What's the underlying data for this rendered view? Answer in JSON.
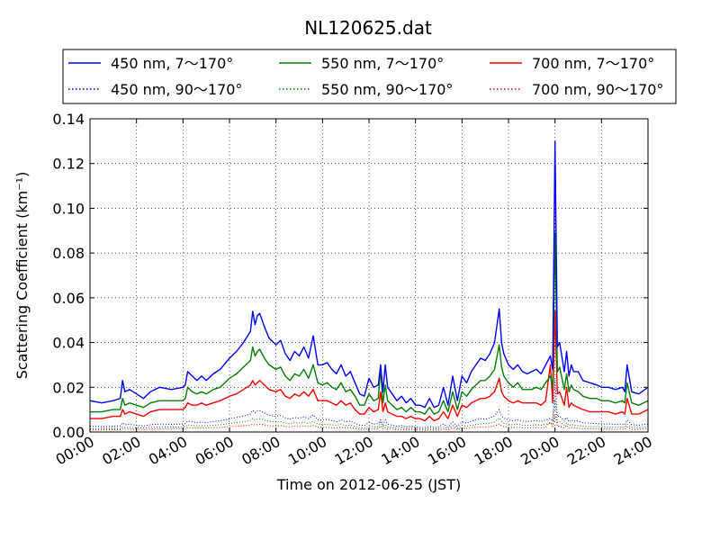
{
  "chart_data": {
    "type": "line",
    "title": "NL120625.dat",
    "xlabel": "Time on 2012-06-25 (JST)",
    "ylabel": "Scattering Coefficient (km⁻¹)",
    "xlim": [
      0,
      24
    ],
    "ylim": [
      0,
      0.14
    ],
    "x_tick_labels": [
      "00:00",
      "02:00",
      "04:00",
      "06:00",
      "08:00",
      "10:00",
      "12:00",
      "14:00",
      "16:00",
      "18:00",
      "20:00",
      "22:00",
      "24:00"
    ],
    "y_ticks": [
      0.0,
      0.02,
      0.04,
      0.06,
      0.08,
      0.1,
      0.12,
      0.14
    ],
    "y_tick_labels": [
      "0.00",
      "0.02",
      "0.04",
      "0.06",
      "0.08",
      "0.10",
      "0.12",
      "0.14"
    ],
    "grid": true,
    "legend_position": "top",
    "series": [
      {
        "name": "450 nm, 7～170°",
        "color": "#0000ff",
        "style": "solid",
        "x": [
          0,
          0.5,
          1,
          1.3,
          1.4,
          1.5,
          1.7,
          2,
          2.3,
          2.6,
          3,
          3.5,
          4,
          4.1,
          4.2,
          4.4,
          4.6,
          4.8,
          5,
          5.3,
          5.6,
          6,
          6.3,
          6.6,
          6.9,
          7.0,
          7.1,
          7.2,
          7.3,
          7.4,
          7.5,
          7.7,
          8,
          8.2,
          8.4,
          8.6,
          8.8,
          9,
          9.2,
          9.4,
          9.6,
          9.8,
          10,
          10.2,
          10.4,
          10.6,
          10.8,
          11,
          11.2,
          11.4,
          11.6,
          11.8,
          12,
          12.2,
          12.4,
          12.5,
          12.6,
          12.7,
          12.8,
          13,
          13.2,
          13.4,
          13.6,
          13.8,
          14,
          14.2,
          14.4,
          14.6,
          14.8,
          15,
          15.2,
          15.4,
          15.6,
          15.8,
          16,
          16.2,
          16.4,
          16.6,
          16.8,
          17,
          17.2,
          17.4,
          17.6,
          17.7,
          17.8,
          18,
          18.2,
          18.4,
          18.6,
          18.8,
          19,
          19.2,
          19.4,
          19.6,
          19.8,
          19.9,
          20.0,
          20.1,
          20.2,
          20.4,
          20.5,
          20.6,
          20.7,
          20.8,
          21,
          21.2,
          21.5,
          21.8,
          22,
          22.3,
          22.6,
          22.9,
          23.0,
          23.1,
          23.3,
          23.6,
          24
        ],
        "y": [
          0.014,
          0.013,
          0.014,
          0.015,
          0.023,
          0.018,
          0.019,
          0.017,
          0.015,
          0.018,
          0.02,
          0.019,
          0.02,
          0.021,
          0.027,
          0.025,
          0.023,
          0.025,
          0.023,
          0.026,
          0.028,
          0.033,
          0.036,
          0.04,
          0.045,
          0.054,
          0.048,
          0.052,
          0.053,
          0.05,
          0.047,
          0.042,
          0.039,
          0.041,
          0.035,
          0.032,
          0.036,
          0.034,
          0.038,
          0.033,
          0.043,
          0.03,
          0.03,
          0.031,
          0.028,
          0.026,
          0.03,
          0.025,
          0.027,
          0.022,
          0.017,
          0.016,
          0.024,
          0.02,
          0.021,
          0.03,
          0.018,
          0.03,
          0.02,
          0.017,
          0.014,
          0.016,
          0.013,
          0.015,
          0.012,
          0.012,
          0.011,
          0.015,
          0.011,
          0.012,
          0.02,
          0.012,
          0.025,
          0.014,
          0.025,
          0.022,
          0.027,
          0.03,
          0.033,
          0.032,
          0.035,
          0.04,
          0.055,
          0.04,
          0.035,
          0.03,
          0.028,
          0.03,
          0.027,
          0.026,
          0.027,
          0.028,
          0.026,
          0.03,
          0.034,
          0.028,
          0.13,
          0.038,
          0.04,
          0.027,
          0.036,
          0.025,
          0.03,
          0.027,
          0.027,
          0.023,
          0.022,
          0.021,
          0.02,
          0.02,
          0.019,
          0.02,
          0.018,
          0.03,
          0.018,
          0.017,
          0.02
        ],
        "dotted_ratio": 0.18
      },
      {
        "name": "550 nm, 7～170°",
        "color": "#008000",
        "style": "solid",
        "x": [
          0,
          0.5,
          1,
          1.3,
          1.4,
          1.5,
          1.7,
          2,
          2.3,
          2.6,
          3,
          3.5,
          4,
          4.1,
          4.2,
          4.4,
          4.6,
          4.8,
          5,
          5.3,
          5.6,
          6,
          6.3,
          6.6,
          6.9,
          7.0,
          7.1,
          7.2,
          7.3,
          7.4,
          7.5,
          7.7,
          8,
          8.2,
          8.4,
          8.6,
          8.8,
          9,
          9.2,
          9.4,
          9.6,
          9.8,
          10,
          10.2,
          10.4,
          10.6,
          10.8,
          11,
          11.2,
          11.4,
          11.6,
          11.8,
          12,
          12.2,
          12.4,
          12.5,
          12.6,
          12.7,
          12.8,
          13,
          13.2,
          13.4,
          13.6,
          13.8,
          14,
          14.2,
          14.4,
          14.6,
          14.8,
          15,
          15.2,
          15.4,
          15.6,
          15.8,
          16,
          16.2,
          16.4,
          16.6,
          16.8,
          17,
          17.2,
          17.4,
          17.6,
          17.7,
          17.8,
          18,
          18.2,
          18.4,
          18.6,
          18.8,
          19,
          19.2,
          19.4,
          19.6,
          19.8,
          19.9,
          20.0,
          20.1,
          20.2,
          20.4,
          20.5,
          20.6,
          20.7,
          20.8,
          21,
          21.2,
          21.5,
          21.8,
          22,
          22.3,
          22.6,
          22.9,
          23.0,
          23.1,
          23.3,
          23.6,
          24
        ],
        "y": [
          0.009,
          0.009,
          0.01,
          0.01,
          0.015,
          0.012,
          0.013,
          0.012,
          0.011,
          0.013,
          0.014,
          0.014,
          0.014,
          0.015,
          0.02,
          0.018,
          0.017,
          0.018,
          0.017,
          0.019,
          0.02,
          0.024,
          0.026,
          0.029,
          0.032,
          0.038,
          0.034,
          0.036,
          0.037,
          0.035,
          0.033,
          0.03,
          0.028,
          0.029,
          0.025,
          0.023,
          0.026,
          0.025,
          0.028,
          0.024,
          0.03,
          0.022,
          0.021,
          0.022,
          0.02,
          0.019,
          0.022,
          0.018,
          0.019,
          0.016,
          0.012,
          0.012,
          0.017,
          0.014,
          0.015,
          0.028,
          0.013,
          0.021,
          0.014,
          0.012,
          0.01,
          0.011,
          0.009,
          0.011,
          0.009,
          0.009,
          0.008,
          0.011,
          0.008,
          0.009,
          0.014,
          0.009,
          0.018,
          0.01,
          0.018,
          0.016,
          0.019,
          0.021,
          0.023,
          0.023,
          0.025,
          0.028,
          0.039,
          0.029,
          0.025,
          0.022,
          0.02,
          0.022,
          0.019,
          0.019,
          0.019,
          0.02,
          0.019,
          0.022,
          0.025,
          0.02,
          0.089,
          0.027,
          0.029,
          0.019,
          0.026,
          0.018,
          0.021,
          0.019,
          0.018,
          0.016,
          0.015,
          0.015,
          0.014,
          0.014,
          0.013,
          0.014,
          0.013,
          0.022,
          0.013,
          0.012,
          0.014
        ],
        "dotted_ratio": 0.16
      },
      {
        "name": "700 nm, 7～170°",
        "color": "#ff0000",
        "style": "solid",
        "x": [
          0,
          0.5,
          1,
          1.3,
          1.4,
          1.5,
          1.7,
          2,
          2.3,
          2.6,
          3,
          3.5,
          4,
          4.1,
          4.2,
          4.4,
          4.6,
          4.8,
          5,
          5.3,
          5.6,
          6,
          6.3,
          6.6,
          6.9,
          7.0,
          7.1,
          7.2,
          7.3,
          7.4,
          7.5,
          7.7,
          8,
          8.2,
          8.4,
          8.6,
          8.8,
          9,
          9.2,
          9.4,
          9.6,
          9.8,
          10,
          10.2,
          10.4,
          10.6,
          10.8,
          11,
          11.2,
          11.4,
          11.6,
          11.8,
          12,
          12.2,
          12.4,
          12.5,
          12.6,
          12.7,
          12.8,
          13,
          13.2,
          13.4,
          13.6,
          13.8,
          14,
          14.2,
          14.4,
          14.6,
          14.8,
          15,
          15.2,
          15.4,
          15.6,
          15.8,
          16,
          16.2,
          16.4,
          16.6,
          16.8,
          17,
          17.2,
          17.4,
          17.6,
          17.7,
          17.8,
          18,
          18.2,
          18.4,
          18.6,
          18.8,
          19,
          19.2,
          19.4,
          19.6,
          19.8,
          19.9,
          20.0,
          20.1,
          20.2,
          20.4,
          20.5,
          20.6,
          20.7,
          20.8,
          21,
          21.2,
          21.5,
          21.8,
          22,
          22.3,
          22.6,
          22.9,
          23.0,
          23.1,
          23.3,
          23.6,
          24
        ],
        "y": [
          0.006,
          0.006,
          0.007,
          0.007,
          0.01,
          0.008,
          0.009,
          0.008,
          0.007,
          0.009,
          0.01,
          0.01,
          0.01,
          0.011,
          0.013,
          0.012,
          0.012,
          0.013,
          0.012,
          0.013,
          0.014,
          0.016,
          0.017,
          0.019,
          0.021,
          0.023,
          0.021,
          0.022,
          0.023,
          0.022,
          0.021,
          0.019,
          0.018,
          0.019,
          0.016,
          0.015,
          0.017,
          0.016,
          0.018,
          0.016,
          0.019,
          0.014,
          0.014,
          0.014,
          0.013,
          0.012,
          0.014,
          0.012,
          0.013,
          0.01,
          0.008,
          0.008,
          0.011,
          0.009,
          0.01,
          0.018,
          0.009,
          0.013,
          0.009,
          0.008,
          0.007,
          0.007,
          0.006,
          0.007,
          0.006,
          0.006,
          0.005,
          0.007,
          0.005,
          0.006,
          0.009,
          0.006,
          0.012,
          0.007,
          0.012,
          0.011,
          0.013,
          0.014,
          0.015,
          0.015,
          0.016,
          0.018,
          0.024,
          0.018,
          0.016,
          0.014,
          0.013,
          0.014,
          0.013,
          0.013,
          0.013,
          0.013,
          0.012,
          0.014,
          0.03,
          0.013,
          0.054,
          0.017,
          0.018,
          0.012,
          0.02,
          0.011,
          0.013,
          0.012,
          0.011,
          0.01,
          0.009,
          0.009,
          0.009,
          0.009,
          0.008,
          0.009,
          0.008,
          0.015,
          0.008,
          0.008,
          0.01
        ],
        "dotted_ratio": 0.15
      },
      {
        "name": "450 nm, 90～170°",
        "color": "#0000ff",
        "style": "dotted"
      },
      {
        "name": "550 nm, 90～170°",
        "color": "#008000",
        "style": "dotted"
      },
      {
        "name": "700 nm, 90～170°",
        "color": "#ff0000",
        "style": "dotted"
      }
    ]
  }
}
